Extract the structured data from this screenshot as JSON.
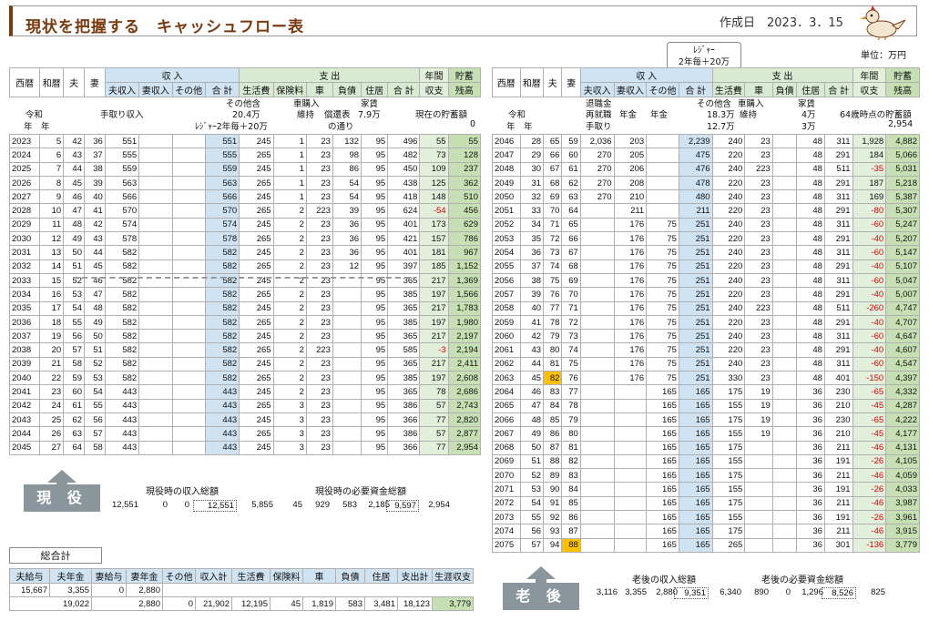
{
  "header": {
    "title": "現状を把握する　キャッシュフロー表",
    "created": "作成日　2023．3．15",
    "unit": "単位：万円"
  },
  "bubble": {
    "line1": "ﾚｼﾞｬｰ",
    "line2": "2年毎＋20万"
  },
  "left": {
    "h1": {
      "c1": "西暦",
      "c2": "和暦",
      "c3": "夫",
      "c4": "妻",
      "income": "収 入",
      "expense": "支 出",
      "annual": "年間",
      "savings": "貯蓄"
    },
    "h2": [
      "夫収入",
      "妻収入",
      "その他",
      "合 計",
      "生活費",
      "保険料",
      "車",
      "負債",
      "住居",
      "合 計",
      "収支",
      "残高"
    ],
    "rows": [
      [
        "2023",
        "5",
        "42",
        "36",
        "551",
        "",
        "",
        "551",
        "245",
        "1",
        "23",
        "132",
        "95",
        "496",
        "55",
        "55"
      ],
      [
        "2024",
        "6",
        "43",
        "37",
        "555",
        "",
        "",
        "555",
        "265",
        "1",
        "23",
        "98",
        "95",
        "482",
        "73",
        "128"
      ],
      [
        "2025",
        "7",
        "44",
        "38",
        "559",
        "",
        "",
        "559",
        "245",
        "1",
        "23",
        "86",
        "95",
        "450",
        "109",
        "237"
      ],
      [
        "2026",
        "8",
        "45",
        "39",
        "563",
        "",
        "",
        "563",
        "265",
        "1",
        "23",
        "54",
        "95",
        "438",
        "125",
        "362"
      ],
      [
        "2027",
        "9",
        "46",
        "40",
        "566",
        "",
        "",
        "566",
        "245",
        "1",
        "23",
        "54",
        "95",
        "418",
        "148",
        "510"
      ],
      [
        "2028",
        "10",
        "47",
        "41",
        "570",
        "",
        "",
        "570",
        "265",
        "2",
        "223",
        "39",
        "95",
        "624",
        "-54",
        "456"
      ],
      [
        "2029",
        "11",
        "48",
        "42",
        "574",
        "",
        "",
        "574",
        "245",
        "2",
        "23",
        "36",
        "95",
        "401",
        "173",
        "629"
      ],
      [
        "2030",
        "12",
        "49",
        "43",
        "578",
        "",
        "",
        "578",
        "265",
        "2",
        "23",
        "36",
        "95",
        "421",
        "157",
        "786"
      ],
      [
        "2031",
        "13",
        "50",
        "44",
        "582",
        "",
        "",
        "582",
        "245",
        "2",
        "23",
        "36",
        "95",
        "401",
        "181",
        "967"
      ],
      [
        "2032",
        "14",
        "51",
        "45",
        "582",
        "",
        "",
        "582",
        "265",
        "2",
        "23",
        "12",
        "95",
        "397",
        "185",
        "1,152"
      ],
      [
        "2033",
        "15",
        "52",
        "46",
        "582",
        "",
        "",
        "582",
        "245",
        "2",
        "23",
        "",
        "95",
        "365",
        "217",
        "1,369"
      ],
      [
        "2034",
        "16",
        "53",
        "47",
        "582",
        "",
        "",
        "582",
        "265",
        "2",
        "23",
        "",
        "95",
        "385",
        "197",
        "1,566"
      ],
      [
        "2035",
        "17",
        "54",
        "48",
        "582",
        "",
        "",
        "582",
        "245",
        "2",
        "23",
        "",
        "95",
        "365",
        "217",
        "1,783"
      ],
      [
        "2036",
        "18",
        "55",
        "49",
        "582",
        "",
        "",
        "582",
        "265",
        "2",
        "23",
        "",
        "95",
        "385",
        "197",
        "1,980"
      ],
      [
        "2037",
        "19",
        "56",
        "50",
        "582",
        "",
        "",
        "582",
        "245",
        "2",
        "23",
        "",
        "95",
        "365",
        "217",
        "2,197"
      ],
      [
        "2038",
        "20",
        "57",
        "51",
        "582",
        "",
        "",
        "582",
        "265",
        "2",
        "223",
        "",
        "95",
        "585",
        "-3",
        "2,194"
      ],
      [
        "2039",
        "21",
        "58",
        "52",
        "582",
        "",
        "",
        "582",
        "245",
        "2",
        "23",
        "",
        "95",
        "365",
        "217",
        "2,411"
      ],
      [
        "2040",
        "22",
        "59",
        "53",
        "582",
        "",
        "",
        "582",
        "265",
        "2",
        "23",
        "",
        "95",
        "385",
        "197",
        "2,608"
      ],
      [
        "2041",
        "23",
        "60",
        "54",
        "443",
        "",
        "",
        "443",
        "245",
        "2",
        "23",
        "",
        "95",
        "365",
        "78",
        "2,686"
      ],
      [
        "2042",
        "24",
        "61",
        "55",
        "443",
        "",
        "",
        "443",
        "265",
        "3",
        "23",
        "",
        "95",
        "386",
        "57",
        "2,743"
      ],
      [
        "2043",
        "25",
        "62",
        "56",
        "443",
        "",
        "",
        "443",
        "245",
        "3",
        "23",
        "",
        "95",
        "366",
        "77",
        "2,820"
      ],
      [
        "2044",
        "26",
        "63",
        "57",
        "443",
        "",
        "",
        "443",
        "265",
        "3",
        "23",
        "",
        "95",
        "386",
        "57",
        "2,877"
      ],
      [
        "2045",
        "27",
        "64",
        "58",
        "443",
        "",
        "",
        "443",
        "245",
        "3",
        "23",
        "",
        "95",
        "366",
        "77",
        "2,954"
      ]
    ],
    "annot": {
      "reiwa": "令和",
      "nen": "年　年",
      "tedori": "手取り収入",
      "sonota": "その他含",
      "sonota2": "20.4万",
      "leisure": "ﾚｼﾞｬｰ2年毎＋20万",
      "car": "車購入",
      "iji": "維持",
      "hensai": "償還表",
      "doori": "の通り",
      "yachin": "家賃",
      "yachin2": "7.9万",
      "genzai": "現在の貯蓄額",
      "genzai_v": "0"
    },
    "summary": {
      "label1": "現役時の収入総額",
      "label2": "現役時の必要資金総額",
      "v": [
        "12,551",
        "0",
        "0",
        "12,551",
        "5,855",
        "45",
        "929",
        "583",
        "2,185",
        "9,597",
        "2,954"
      ]
    },
    "badge": "現 役"
  },
  "right": {
    "h1": {
      "c1": "西暦",
      "c2": "和暦",
      "c3": "夫",
      "c4": "妻",
      "income": "収 入",
      "expense": "支 出",
      "annual": "年間",
      "savings": "貯蓄"
    },
    "h2": [
      "夫収入",
      "妻収入",
      "その他",
      "合 計",
      "生活費",
      "車",
      "負債",
      "住居",
      "合 計",
      "収支",
      "残高"
    ],
    "rows": [
      [
        "2046",
        "28",
        "65",
        "59",
        "2,036",
        "203",
        "",
        "2,239",
        "240",
        "23",
        "",
        "48",
        "311",
        "1,928",
        "4,882"
      ],
      [
        "2047",
        "29",
        "66",
        "60",
        "270",
        "205",
        "",
        "475",
        "220",
        "23",
        "",
        "48",
        "291",
        "184",
        "5,066"
      ],
      [
        "2048",
        "30",
        "67",
        "61",
        "270",
        "206",
        "",
        "476",
        "240",
        "223",
        "",
        "48",
        "511",
        "-35",
        "5,031"
      ],
      [
        "2049",
        "31",
        "68",
        "62",
        "270",
        "208",
        "",
        "478",
        "220",
        "23",
        "",
        "48",
        "291",
        "187",
        "5,218"
      ],
      [
        "2050",
        "32",
        "69",
        "63",
        "270",
        "210",
        "",
        "480",
        "240",
        "23",
        "",
        "48",
        "311",
        "169",
        "5,387"
      ],
      [
        "2051",
        "33",
        "70",
        "64",
        "",
        "211",
        "",
        "211",
        "220",
        "23",
        "",
        "48",
        "291",
        "-80",
        "5,307"
      ],
      [
        "2052",
        "34",
        "71",
        "65",
        "",
        "176",
        "75",
        "251",
        "240",
        "23",
        "",
        "48",
        "311",
        "-60",
        "5,247"
      ],
      [
        "2053",
        "35",
        "72",
        "66",
        "",
        "176",
        "75",
        "251",
        "220",
        "23",
        "",
        "48",
        "291",
        "-40",
        "5,207"
      ],
      [
        "2054",
        "36",
        "73",
        "67",
        "",
        "176",
        "75",
        "251",
        "240",
        "23",
        "",
        "48",
        "311",
        "-60",
        "5,147"
      ],
      [
        "2055",
        "37",
        "74",
        "68",
        "",
        "176",
        "75",
        "251",
        "220",
        "23",
        "",
        "48",
        "291",
        "-40",
        "5,107"
      ],
      [
        "2056",
        "38",
        "75",
        "69",
        "",
        "176",
        "75",
        "251",
        "240",
        "23",
        "",
        "48",
        "311",
        "-60",
        "5,047"
      ],
      [
        "2057",
        "39",
        "76",
        "70",
        "",
        "176",
        "75",
        "251",
        "220",
        "23",
        "",
        "48",
        "291",
        "-40",
        "5,007"
      ],
      [
        "2058",
        "40",
        "77",
        "71",
        "",
        "176",
        "75",
        "251",
        "240",
        "223",
        "",
        "48",
        "511",
        "-260",
        "4,747"
      ],
      [
        "2059",
        "41",
        "78",
        "72",
        "",
        "176",
        "75",
        "251",
        "220",
        "23",
        "",
        "48",
        "291",
        "-40",
        "4,707"
      ],
      [
        "2060",
        "42",
        "79",
        "73",
        "",
        "176",
        "75",
        "251",
        "240",
        "23",
        "",
        "48",
        "311",
        "-60",
        "4,647"
      ],
      [
        "2061",
        "43",
        "80",
        "74",
        "",
        "176",
        "75",
        "251",
        "220",
        "23",
        "",
        "48",
        "291",
        "-40",
        "4,607"
      ],
      [
        "2062",
        "44",
        "81",
        "75",
        "",
        "176",
        "75",
        "251",
        "240",
        "23",
        "",
        "48",
        "311",
        "-60",
        "4,547"
      ],
      [
        "2063",
        "45",
        "82",
        "76",
        "",
        "176",
        "75",
        "251",
        "330",
        "23",
        "",
        "48",
        "401",
        "-150",
        "4,397"
      ],
      [
        "2064",
        "46",
        "83",
        "77",
        "",
        "",
        "165",
        "165",
        "175",
        "19",
        "",
        "36",
        "230",
        "-65",
        "4,332"
      ],
      [
        "2065",
        "47",
        "84",
        "78",
        "",
        "",
        "165",
        "165",
        "155",
        "19",
        "",
        "36",
        "210",
        "-45",
        "4,287"
      ],
      [
        "2066",
        "48",
        "85",
        "79",
        "",
        "",
        "165",
        "165",
        "175",
        "19",
        "",
        "36",
        "230",
        "-65",
        "4,222"
      ],
      [
        "2067",
        "49",
        "86",
        "80",
        "",
        "",
        "165",
        "165",
        "155",
        "19",
        "",
        "36",
        "210",
        "-45",
        "4,177"
      ],
      [
        "2068",
        "50",
        "87",
        "81",
        "",
        "",
        "165",
        "165",
        "175",
        "",
        "",
        "36",
        "211",
        "-46",
        "4,131"
      ],
      [
        "2069",
        "51",
        "88",
        "82",
        "",
        "",
        "165",
        "165",
        "155",
        "",
        "",
        "36",
        "191",
        "-26",
        "4,105"
      ],
      [
        "2070",
        "52",
        "89",
        "83",
        "",
        "",
        "165",
        "165",
        "175",
        "",
        "",
        "36",
        "211",
        "-46",
        "4,059"
      ],
      [
        "2071",
        "53",
        "90",
        "84",
        "",
        "",
        "165",
        "165",
        "155",
        "",
        "",
        "36",
        "191",
        "-26",
        "4,033"
      ],
      [
        "2072",
        "54",
        "91",
        "85",
        "",
        "",
        "165",
        "165",
        "175",
        "",
        "",
        "36",
        "211",
        "-46",
        "3,987"
      ],
      [
        "2073",
        "55",
        "92",
        "86",
        "",
        "",
        "165",
        "165",
        "155",
        "",
        "",
        "36",
        "191",
        "-26",
        "3,961"
      ],
      [
        "2074",
        "56",
        "93",
        "87",
        "",
        "",
        "165",
        "165",
        "175",
        "",
        "",
        "36",
        "211",
        "-46",
        "3,915"
      ],
      [
        "2075",
        "57",
        "94",
        "88",
        "",
        "",
        "165",
        "165",
        "265",
        "",
        "",
        "36",
        "301",
        "-136",
        "3,779"
      ]
    ],
    "annot": {
      "reiwa": "令和",
      "nen": "年　年",
      "taishoku": "退職金",
      "saishu": "再就職",
      "tedori": "手取り",
      "nenkin": "年金",
      "nenkin2": "年金",
      "sonota": "その他含",
      "sonota2": "18.3万",
      "sonota3": "12.7万",
      "car": "車購入",
      "iji": "維持",
      "yachin": "家賃",
      "yachin2": "4万",
      "yachin3": "3万",
      "yokin": "64歳時点の貯蓄額",
      "yokin_v": "2,954"
    },
    "summary": {
      "label1": "老後の収入総額",
      "label2": "老後の必要資金総額",
      "v": [
        "3,116",
        "3,355",
        "2,880",
        "9,351",
        "6,340",
        "890",
        "0",
        "1,296",
        "8,526",
        "825"
      ]
    },
    "badge": "老 後"
  },
  "total": {
    "label": "総合計",
    "headers": [
      "夫給与",
      "夫年金",
      "妻給与",
      "妻年金",
      "その他",
      "収入計",
      "生活費",
      "保険料",
      "車",
      "負債",
      "住居",
      "支出計",
      "生涯収支"
    ],
    "row1": [
      "15,667",
      "3,355",
      "0",
      "2,880"
    ],
    "row2": [
      "19,022",
      "2,880",
      "0",
      "21,902",
      "12,195",
      "45",
      "1,819",
      "583",
      "3,481",
      "18,123",
      "3,779"
    ]
  }
}
